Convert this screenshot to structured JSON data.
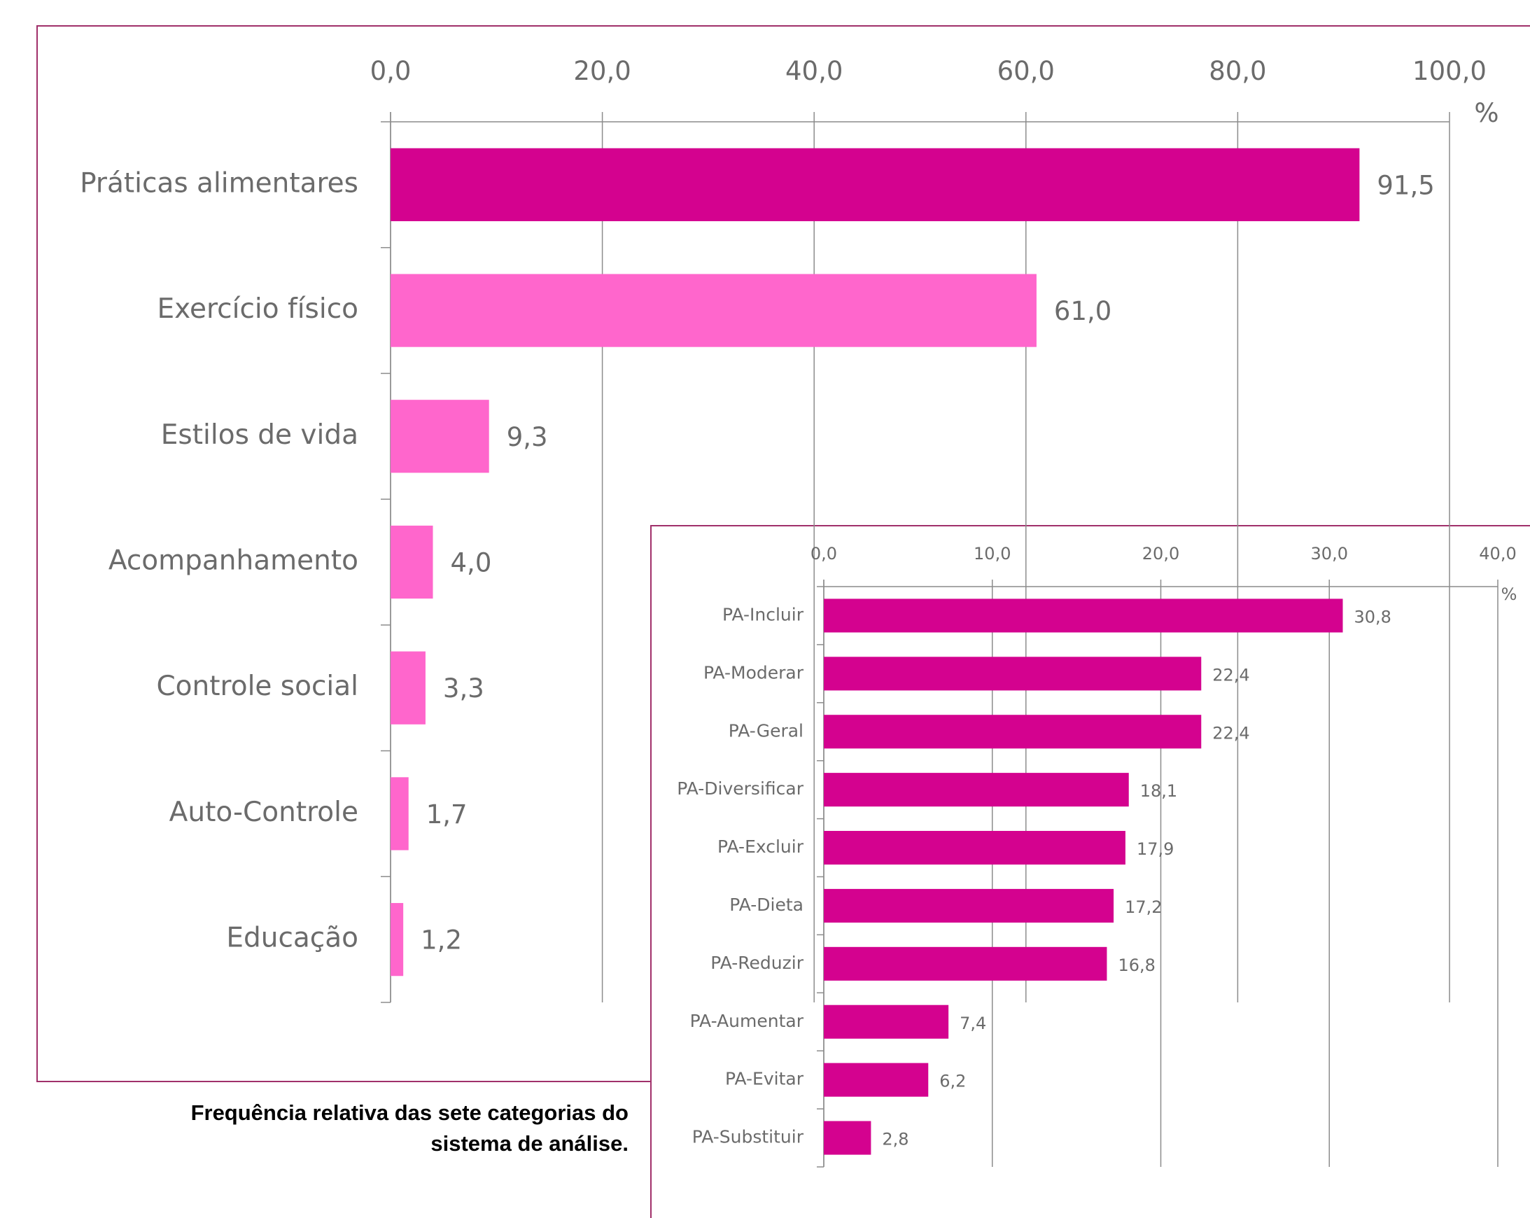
{
  "caption": {
    "line1": "Frequência relativa das sete categorias do",
    "line2": "sistema de análise."
  },
  "chart_data": [
    {
      "type": "bar",
      "orientation": "horizontal",
      "categories": [
        "Práticas alimentares",
        "Exercício físico",
        "Estilos de vida",
        "Acompanhamento",
        "Controle social",
        "Auto-Controle",
        "Educação"
      ],
      "series": [
        {
          "values": [
            91.5,
            61.0,
            9.3,
            4.0,
            3.3,
            1.7,
            1.2
          ],
          "value_labels": [
            "91,5",
            "61,0",
            "9,3",
            "4,0",
            "3,3",
            "1,7",
            "1,2"
          ],
          "colors": [
            "#d4028f",
            "#ff66cc",
            "#ff66cc",
            "#ff66cc",
            "#ff66cc",
            "#ff66cc",
            "#ff66cc"
          ]
        }
      ],
      "xlim": [
        0,
        100
      ],
      "x_ticks": [
        "0,0",
        "20,0",
        "40,0",
        "60,0",
        "80,0",
        "100,0"
      ],
      "xlabel": "%",
      "axis_position": "top",
      "grid": true,
      "legend": "none"
    },
    {
      "type": "bar",
      "orientation": "horizontal",
      "categories": [
        "PA-Incluir",
        "PA-Moderar",
        "PA-Geral",
        "PA-Diversificar",
        "PA-Excluir",
        "PA-Dieta",
        "PA-Reduzir",
        "PA-Aumentar",
        "PA-Evitar",
        "PA-Substituir"
      ],
      "series": [
        {
          "values": [
            30.8,
            22.4,
            22.4,
            18.1,
            17.9,
            17.2,
            16.8,
            7.4,
            6.2,
            2.8
          ],
          "value_labels": [
            "30,8",
            "22,4",
            "22,4",
            "18,1",
            "17,9",
            "17,2",
            "16,8",
            "7,4",
            "6,2",
            "2,8"
          ],
          "colors": [
            "#d4028f"
          ]
        }
      ],
      "xlim": [
        0,
        40
      ],
      "x_ticks": [
        "0,0",
        "10,0",
        "20,0",
        "30,0",
        "40,0"
      ],
      "xlabel": "%",
      "axis_position": "top",
      "grid": true,
      "legend": "none"
    }
  ]
}
